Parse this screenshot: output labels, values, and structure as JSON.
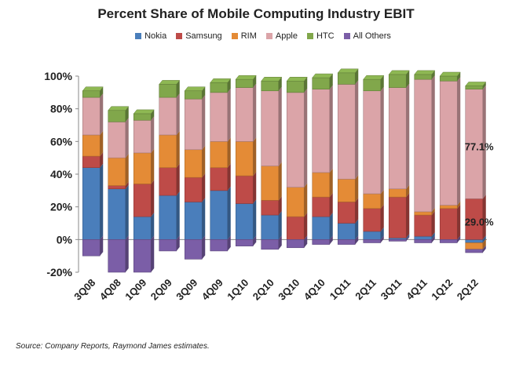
{
  "chart_data": {
    "type": "bar",
    "title": "Percent Share of Mobile Computing Industry EBIT",
    "stacked": true,
    "categories": [
      "3Q08",
      "4Q08",
      "1Q09",
      "2Q09",
      "3Q09",
      "4Q09",
      "1Q10",
      "2Q10",
      "3Q10",
      "4Q10",
      "1Q11",
      "2Q11",
      "3Q11",
      "4Q11",
      "1Q12",
      "2Q12"
    ],
    "series": [
      {
        "name": "Nokia",
        "color": "#4a7ebb",
        "values": [
          44,
          31,
          14,
          27,
          23,
          30,
          22,
          15,
          0,
          14,
          10,
          5,
          1,
          2,
          0,
          -2
        ]
      },
      {
        "name": "Samsung",
        "color": "#be4b48",
        "values": [
          7,
          2,
          20,
          17,
          15,
          14,
          17,
          9,
          14,
          12,
          13,
          14,
          25,
          13,
          19,
          25
        ]
      },
      {
        "name": "RIM",
        "color": "#e48b36",
        "values": [
          13,
          17,
          19,
          20,
          17,
          16,
          21,
          21,
          18,
          15,
          14,
          9,
          5,
          2,
          2,
          -4
        ]
      },
      {
        "name": "Apple",
        "color": "#dba4a8",
        "values": [
          23,
          22,
          20,
          23,
          31,
          30,
          33,
          46,
          58,
          51,
          58,
          63,
          62,
          81,
          76,
          67
        ]
      },
      {
        "name": "HTC",
        "color": "#81a74b",
        "values": [
          4,
          7,
          4,
          8,
          5,
          6,
          5,
          6,
          7,
          7,
          7,
          7,
          8,
          3,
          3,
          2
        ]
      },
      {
        "name": "All Others",
        "color": "#7b5ea7",
        "values": [
          -10,
          -20,
          -20,
          -7,
          -12,
          -7,
          -4,
          -6,
          -5,
          -3,
          -3,
          -2,
          -1,
          -2,
          -2,
          -2
        ]
      }
    ],
    "ylim": [
      -20,
      100
    ],
    "yticks": [
      -20,
      0,
      20,
      40,
      60,
      80,
      100
    ],
    "ytick_labels": [
      "-20%",
      "0%",
      "20%",
      "40%",
      "60%",
      "80%",
      "100%"
    ],
    "legend_position": "top",
    "grid": false,
    "annotations": [
      {
        "text": "77.1%",
        "category": "2Q12",
        "y": 57
      },
      {
        "text": "29.0%",
        "category": "2Q12",
        "y": 11
      }
    ],
    "xlabel": "",
    "ylabel": ""
  },
  "source_note": "Source:  Company Reports, Raymond James estimates."
}
